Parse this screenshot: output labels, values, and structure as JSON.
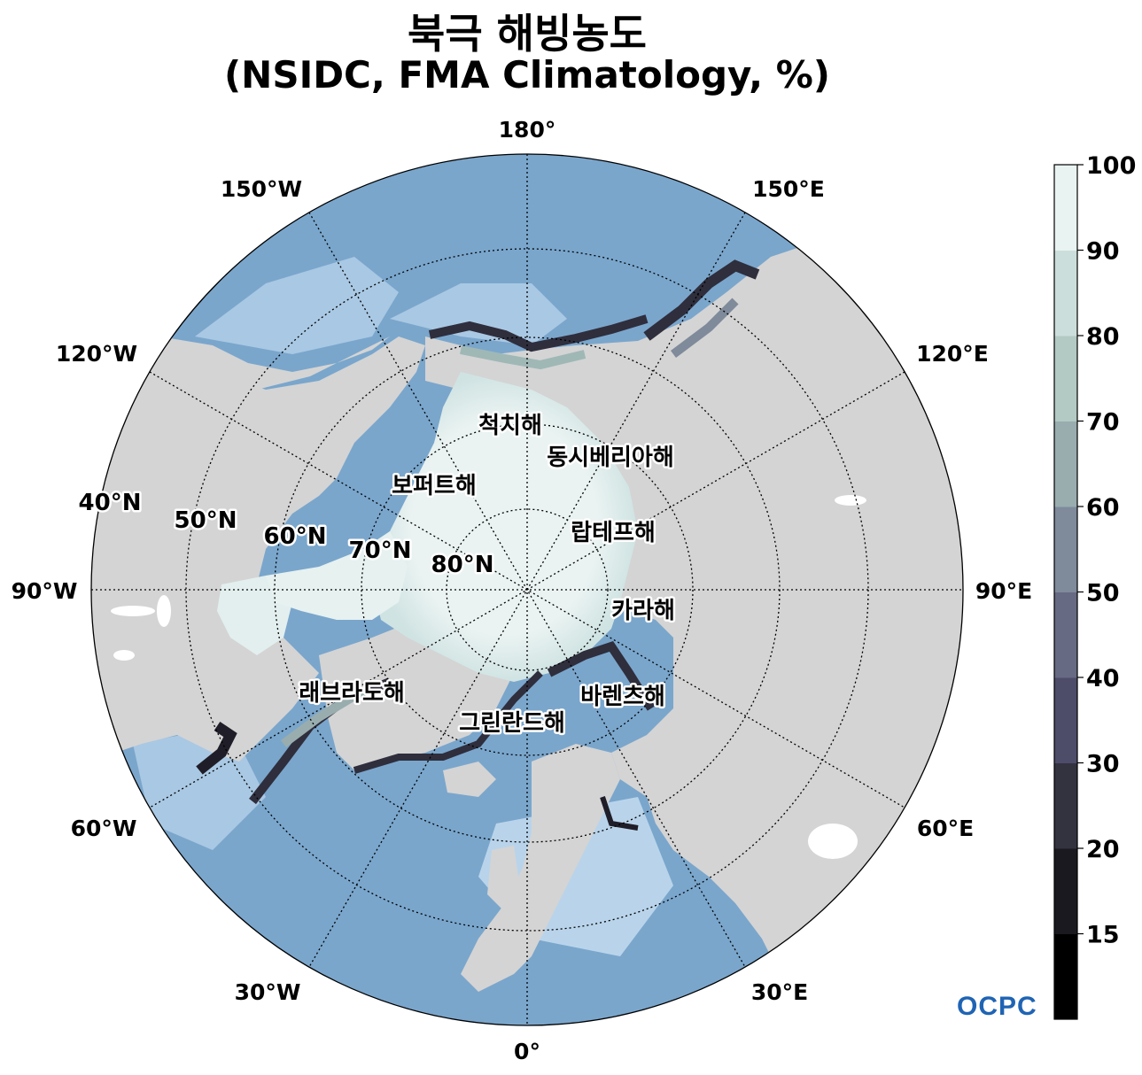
{
  "title": {
    "line1": "북극 해빙농도",
    "line2": "(NSIDC, FMA Climatology, %)"
  },
  "map": {
    "projection": "north-polar-stereographic",
    "center_latitude": 90,
    "longitude_labels": [
      "180°",
      "150°E",
      "120°E",
      "90°E",
      "60°E",
      "30°E",
      "0°",
      "30°W",
      "60°W",
      "90°W",
      "120°W",
      "150°W"
    ],
    "latitude_labels": [
      "40°N",
      "50°N",
      "60°N",
      "70°N",
      "80°N"
    ],
    "colors": {
      "ocean": "#7aa6cc",
      "land": "#d4d4d4",
      "ice_full": "#eaf3f2"
    }
  },
  "sea_labels": {
    "chukchi": "척치해",
    "east_siberian": "동시베리아해",
    "beaufort": "보퍼트해",
    "laptev": "랍테프해",
    "kara": "카라해",
    "barents": "바렌츠해",
    "labrador": "래브라도해",
    "greenland": "그린란드해"
  },
  "colorbar": {
    "ticks": [
      "100",
      "90",
      "80",
      "70",
      "60",
      "50",
      "40",
      "30",
      "20",
      "15"
    ],
    "colors": [
      "#000000",
      "#19191f",
      "#33323f",
      "#4d4c69",
      "#666a82",
      "#7f8a9b",
      "#99adaf",
      "#b3c9c4",
      "#ccdedb",
      "#e9f3f2"
    ]
  },
  "logo": {
    "text": "OCPC"
  }
}
